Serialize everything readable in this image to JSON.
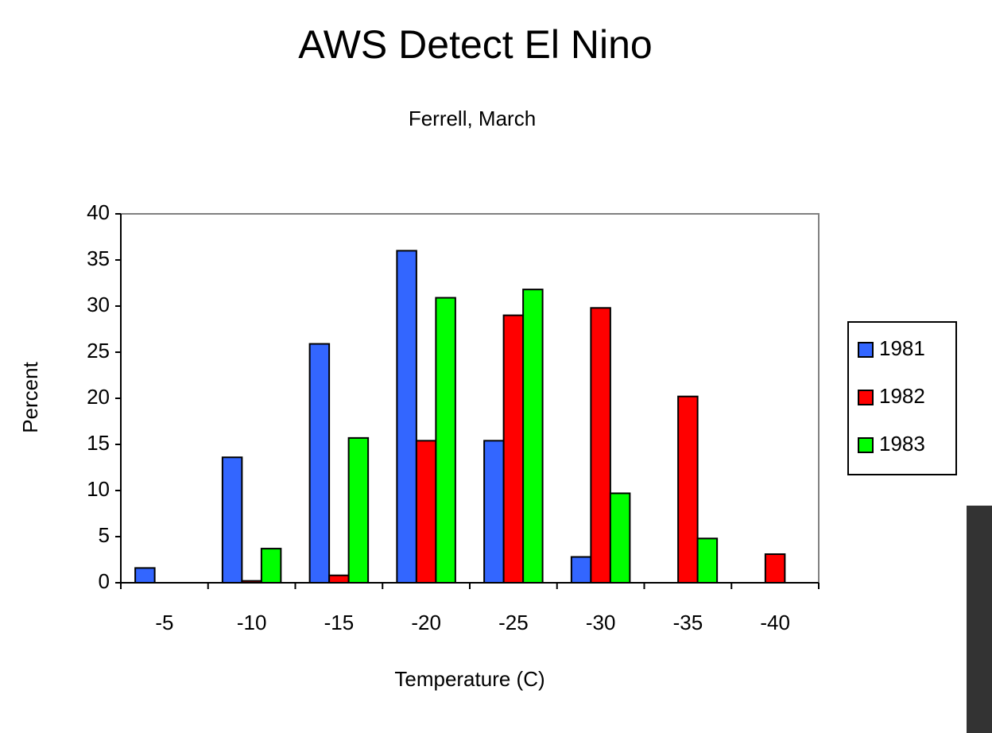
{
  "chart_data": {
    "type": "bar",
    "title": "AWS  Detect  El  Nino",
    "subtitle": "Ferrell, March",
    "x_label": "Temperature (C)",
    "y_label": "Percent",
    "categories": [
      "-5",
      "-10",
      "-15",
      "-20",
      "-25",
      "-30",
      "-35",
      "-40"
    ],
    "series": [
      {
        "name": "1981",
        "color": "#3366ff",
        "values": [
          1.6,
          13.6,
          25.9,
          36.0,
          15.4,
          2.8,
          0,
          0
        ]
      },
      {
        "name": "1982",
        "color": "#ff0000",
        "values": [
          0,
          0.2,
          0.8,
          15.4,
          29.0,
          29.8,
          20.2,
          3.1
        ]
      },
      {
        "name": "1983",
        "color": "#00ff00",
        "values": [
          0,
          3.7,
          15.7,
          30.9,
          31.8,
          9.7,
          4.8,
          0
        ]
      }
    ],
    "ylim": [
      0,
      40
    ],
    "yticks": [
      0,
      5,
      10,
      15,
      20,
      25,
      30,
      35,
      40
    ],
    "grid": false,
    "legend": "right"
  }
}
